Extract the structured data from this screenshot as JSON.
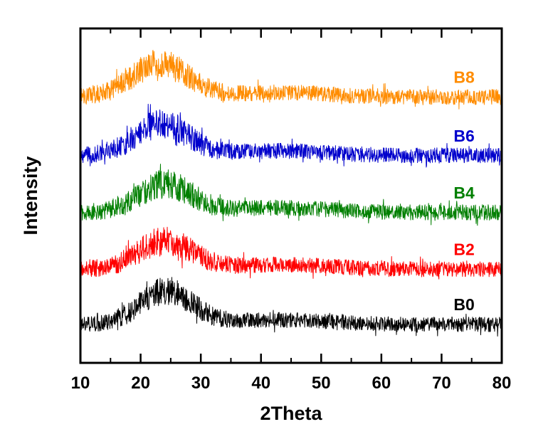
{
  "chart_data": {
    "type": "line",
    "title": "",
    "xlabel": "2Theta",
    "ylabel": "Intensity",
    "x_range": [
      10,
      80
    ],
    "x_ticks": [
      10,
      20,
      30,
      40,
      50,
      60,
      70,
      80
    ],
    "x_minor_ticks": [
      15,
      25,
      35,
      45,
      55,
      65,
      75
    ],
    "y_range": [
      0,
      100
    ],
    "y_ticks": [],
    "grid": false,
    "background": "#FFFFFF",
    "frame_color": "#000000",
    "legend_position": "inline-right",
    "series": [
      {
        "name": "B0",
        "color": "#000000",
        "baseline": 11.5,
        "peak": {
          "center": 24.2,
          "height": 10.0,
          "width": 4.3
        },
        "secondary_peak": {
          "center": 43,
          "height": 1.4,
          "width": 8
        },
        "noise_amplitude": 2.2,
        "label_x": 72,
        "label_y": 15.7
      },
      {
        "name": "B2",
        "color": "#FF0000",
        "baseline": 28.0,
        "peak": {
          "center": 24.0,
          "height": 8.5,
          "width": 4.5
        },
        "secondary_peak": {
          "center": 43,
          "height": 1.4,
          "width": 8
        },
        "noise_amplitude": 2.3,
        "label_x": 72,
        "label_y": 32.2
      },
      {
        "name": "B4",
        "color": "#007F00",
        "baseline": 45.0,
        "peak": {
          "center": 24.0,
          "height": 8.5,
          "width": 4.4
        },
        "secondary_peak": {
          "center": 43,
          "height": 1.4,
          "width": 8
        },
        "noise_amplitude": 2.3,
        "label_x": 72,
        "label_y": 49.2
      },
      {
        "name": "B6",
        "color": "#0000CC",
        "baseline": 62.0,
        "peak": {
          "center": 23.5,
          "height": 9.5,
          "width": 4.4
        },
        "secondary_peak": {
          "center": 43,
          "height": 1.4,
          "width": 8
        },
        "noise_amplitude": 2.3,
        "label_x": 72,
        "label_y": 66.2
      },
      {
        "name": "B8",
        "color": "#FF8C00",
        "baseline": 79.5,
        "peak": {
          "center": 23.2,
          "height": 10.0,
          "width": 4.6
        },
        "secondary_peak": {
          "center": 43,
          "height": 1.4,
          "width": 8
        },
        "noise_amplitude": 2.3,
        "label_x": 72,
        "label_y": 83.7
      }
    ]
  }
}
